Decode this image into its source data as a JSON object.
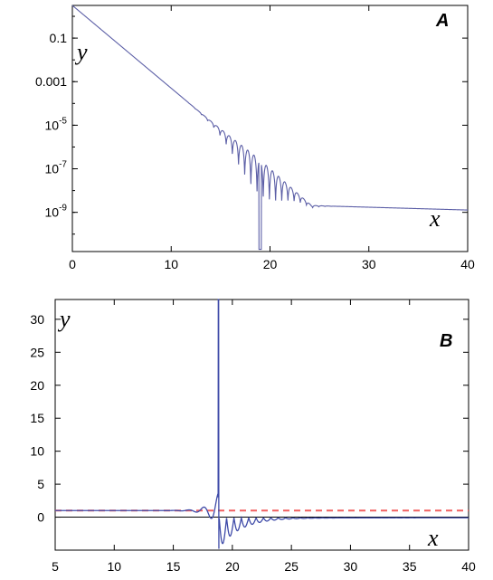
{
  "chart_data": [
    {
      "panel": "A",
      "type": "line",
      "yscale": "log",
      "xlim": [
        0,
        40
      ],
      "ylim_exp": [
        -10.8,
        0.5
      ],
      "xticks": [
        0,
        10,
        20,
        30,
        40
      ],
      "yticks": [
        {
          "label": "0.1",
          "exp": -1
        },
        {
          "label": "0.001",
          "exp": -3
        },
        {
          "label": "10",
          "sup": "-5",
          "exp": -5
        },
        {
          "label": "10",
          "sup": "-7",
          "exp": -7
        },
        {
          "label": "10",
          "sup": "-9",
          "exp": -9
        }
      ],
      "xlabel": "x",
      "ylabel": "y",
      "label": "A",
      "color": "#5b5ea6",
      "curve_notes": "y ~ 10^(0.5 - 0.38x) for x < ~12; oscillations 12-26 with deep dip near x = 19; then slow decay from ~2e-9 at x=25 to ~1.3e-9 at x=40",
      "anchor_points": [
        [
          0,
          0.3
        ],
        [
          5,
          0.0038
        ],
        [
          10,
          5e-05
        ],
        [
          12,
          7e-06
        ],
        [
          15,
          5e-07
        ],
        [
          18,
          3e-08
        ],
        [
          19,
          3e-11
        ],
        [
          22,
          3e-09
        ],
        [
          25,
          2e-09
        ],
        [
          30,
          1.8e-09
        ],
        [
          35,
          1.5e-09
        ],
        [
          40,
          1.3e-09
        ]
      ]
    },
    {
      "panel": "B",
      "type": "line",
      "yscale": "linear",
      "xlim": [
        5,
        40
      ],
      "ylim": [
        -5,
        33
      ],
      "xticks": [
        5,
        10,
        15,
        20,
        25,
        30,
        35,
        40
      ],
      "yticks": [
        0,
        5,
        10,
        15,
        20,
        25,
        30
      ],
      "xlabel": "x",
      "ylabel": "y",
      "label": "B",
      "series": [
        {
          "color": "#3e4aa8",
          "style": "solid"
        },
        {
          "color": "#f06060",
          "style": "dashed",
          "value": 1
        }
      ],
      "zero_line_color": "#000000",
      "anchor_points": [
        [
          5,
          1
        ],
        [
          15,
          1
        ],
        [
          17,
          1.5
        ],
        [
          18,
          3.5
        ],
        [
          18.8,
          33
        ],
        [
          19.2,
          -4.8
        ],
        [
          20,
          -2
        ],
        [
          22,
          -0.8
        ],
        [
          25,
          -0.3
        ],
        [
          40,
          -0.1
        ]
      ]
    }
  ]
}
